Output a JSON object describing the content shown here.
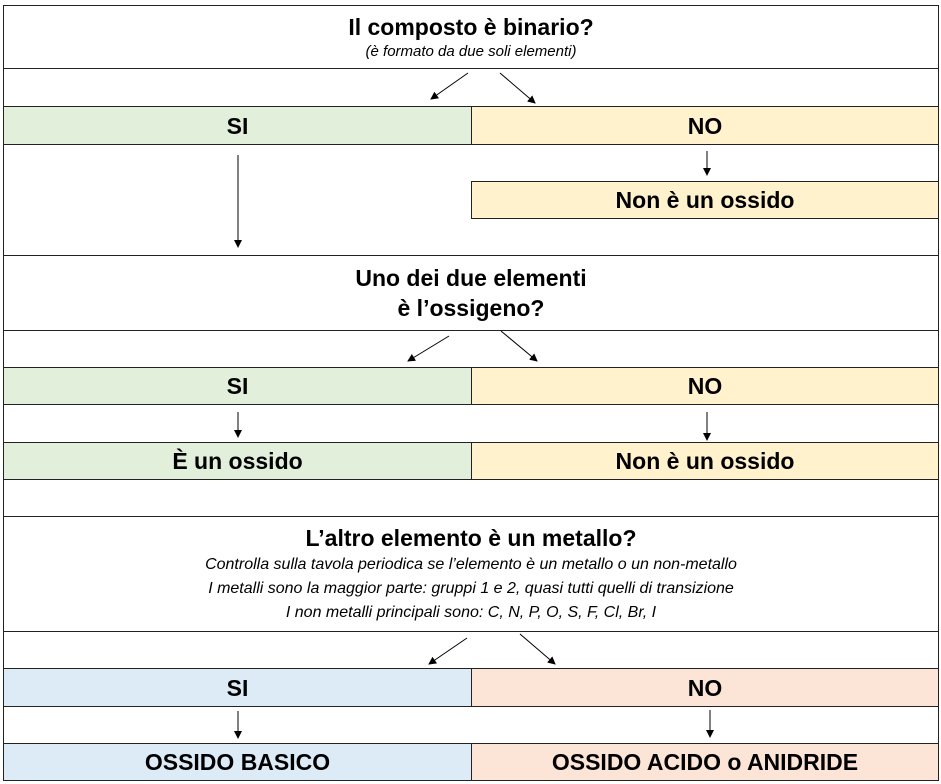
{
  "colors": {
    "yes_green": "#e2efda",
    "no_yellow": "#fff2cc",
    "yes_blue": "#ddebf7",
    "no_peach": "#fce4d6",
    "border": "#222222"
  },
  "q1": {
    "title": "Il composto è binario?",
    "subtitle": "(è formato da due soli elementi)",
    "yes": "SI",
    "no": "NO",
    "no_result": "Non è un ossido"
  },
  "q2": {
    "title_line1": "Uno dei due elementi",
    "title_line2": "è l’ossigeno?",
    "yes": "SI",
    "no": "NO",
    "yes_result": "È un ossido",
    "no_result": "Non è un ossido"
  },
  "q3": {
    "title": "L’altro elemento è un metallo?",
    "notes": [
      "Controlla sulla tavola periodica se l’elemento è un metallo o un non-metallo",
      "I metalli sono la maggior parte: gruppi 1 e 2, quasi tutti quelli di transizione",
      "I non metalli principali sono: C, N, P, O, S, F, Cl, Br, I"
    ],
    "yes": "SI",
    "no": "NO",
    "yes_result": "OSSIDO BASICO",
    "no_result": "OSSIDO ACIDO o ANIDRIDE"
  }
}
